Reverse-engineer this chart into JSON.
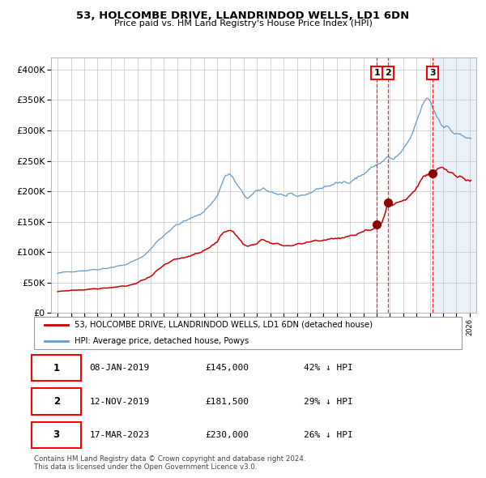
{
  "title1": "53, HOLCOMBE DRIVE, LLANDRINDOD WELLS, LD1 6DN",
  "title2": "Price paid vs. HM Land Registry's House Price Index (HPI)",
  "sale_dates_num": [
    2019.03,
    2019.88,
    2023.21
  ],
  "sale_prices": [
    145000,
    181500,
    230000
  ],
  "sale_labels": [
    "1",
    "2",
    "3"
  ],
  "hpi_label": "HPI: Average price, detached house, Powys",
  "price_label": "53, HOLCOMBE DRIVE, LLANDRINDOD WELLS, LD1 6DN (detached house)",
  "shade_start": 2023.21,
  "ylim": [
    0,
    420000
  ],
  "xlim_start": 1994.5,
  "xlim_end": 2026.5,
  "table_rows": [
    [
      "1",
      "08-JAN-2019",
      "£145,000",
      "42% ↓ HPI"
    ],
    [
      "2",
      "12-NOV-2019",
      "£181,500",
      "29% ↓ HPI"
    ],
    [
      "3",
      "17-MAR-2023",
      "£230,000",
      "26% ↓ HPI"
    ]
  ],
  "footer": "Contains HM Land Registry data © Crown copyright and database right 2024.\nThis data is licensed under the Open Government Licence v3.0.",
  "hpi_color": "#6699cc",
  "price_color": "#cc0000",
  "bg_color": "#ffffff",
  "grid_color": "#cccccc",
  "shade_color": "#dde8f5"
}
